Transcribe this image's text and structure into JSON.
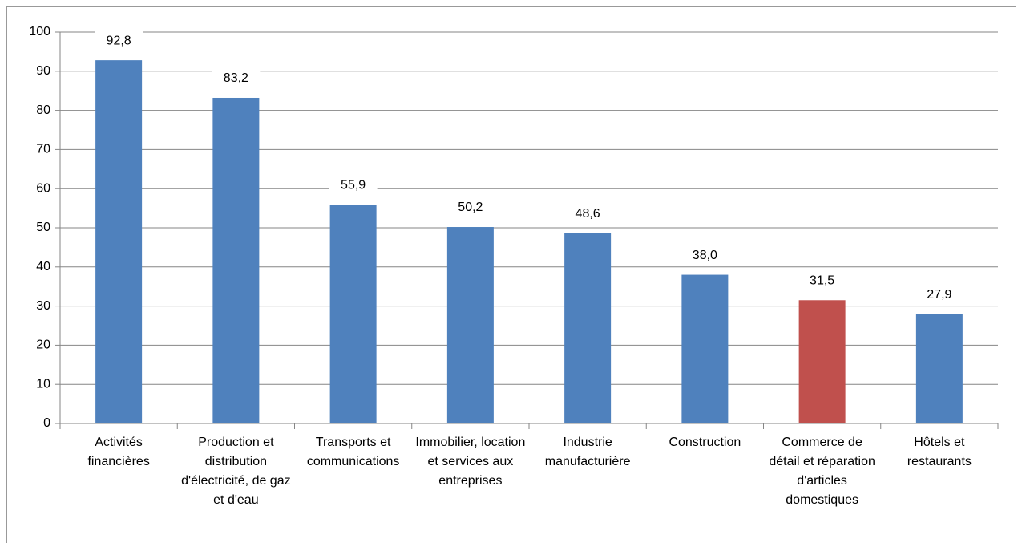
{
  "chart_data": {
    "type": "bar",
    "categories": [
      "Activités financières",
      "Production et distribution d'électricité, de gaz et d'eau",
      "Transports et communications",
      "Immobilier, location et services aux entreprises",
      "Industrie manufacturière",
      "Construction",
      "Commerce de détail et réparation d'articles domestiques",
      "Hôtels et restaurants"
    ],
    "values": [
      92.8,
      83.2,
      55.9,
      50.2,
      48.6,
      38.0,
      31.5,
      27.9
    ],
    "value_labels": [
      "92,8",
      "83,2",
      "55,9",
      "50,2",
      "48,6",
      "38,0",
      "31,5",
      "27,9"
    ],
    "colors": [
      "#4f81bd",
      "#4f81bd",
      "#4f81bd",
      "#4f81bd",
      "#4f81bd",
      "#4f81bd",
      "#c0504d",
      "#4f81bd"
    ],
    "ylim": [
      0,
      100
    ],
    "yticks": [
      0,
      10,
      20,
      30,
      40,
      50,
      60,
      70,
      80,
      90,
      100
    ],
    "grid": true
  }
}
